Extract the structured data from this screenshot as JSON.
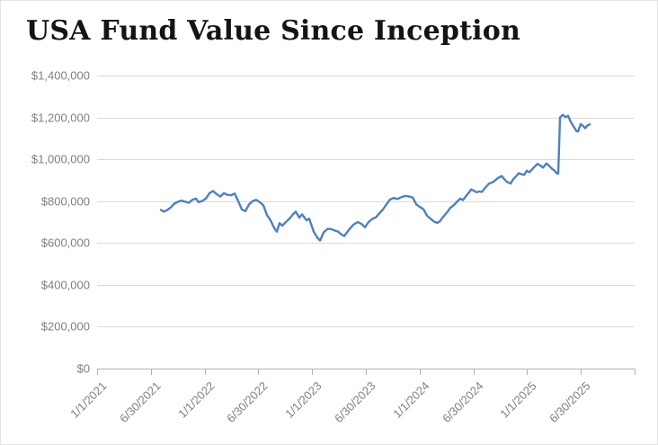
{
  "page": {
    "title": "USA Fund Value Since Inception"
  },
  "colors": {
    "background": "#ffffff",
    "title": "#141414",
    "line": "#4f81bd",
    "gridline": "#d9d9d9",
    "axis": "#b3b3b3",
    "tick_label": "#7f7f7f"
  },
  "chart_data": {
    "type": "line",
    "title": "USA Fund Value Since Inception",
    "xlabel": "",
    "ylabel": "",
    "legend": "none",
    "grid": "horizontal",
    "x_axis": {
      "range": [
        2021.0,
        2026.0
      ],
      "tick_positions": [
        2021.0,
        2021.5,
        2022.0,
        2022.5,
        2023.0,
        2023.5,
        2024.0,
        2024.5,
        2025.0,
        2025.5,
        2026.0
      ],
      "tick_labels": [
        "1/1/2021",
        "6/30/2021",
        "1/1/2022",
        "6/30/2022",
        "1/1/2023",
        "6/30/2023",
        "1/1/2024",
        "6/30/2024",
        "1/1/2025",
        "6/30/2025",
        ""
      ],
      "label_rotation_deg": -45
    },
    "y_axis": {
      "range": [
        0,
        1400000
      ],
      "tick_interval": 200000,
      "tick_labels": [
        "$0",
        "$200,000",
        "$400,000",
        "$600,000",
        "$800,000",
        "$1,000,000",
        "$1,200,000",
        "$1,400,000"
      ]
    },
    "series": [
      {
        "name": "USA Fund Value",
        "points": [
          [
            2021.594,
            758000
          ],
          [
            2021.619,
            750000
          ],
          [
            2021.652,
            757000
          ],
          [
            2021.686,
            770000
          ],
          [
            2021.719,
            788000
          ],
          [
            2021.753,
            797000
          ],
          [
            2021.786,
            802000
          ],
          [
            2021.819,
            797000
          ],
          [
            2021.853,
            792000
          ],
          [
            2021.886,
            806000
          ],
          [
            2021.92,
            812000
          ],
          [
            2021.945,
            795000
          ],
          [
            2021.978,
            800000
          ],
          [
            2022.012,
            812000
          ],
          [
            2022.045,
            838000
          ],
          [
            2022.079,
            848000
          ],
          [
            2022.112,
            833000
          ],
          [
            2022.146,
            822000
          ],
          [
            2022.179,
            838000
          ],
          [
            2022.212,
            830000
          ],
          [
            2022.246,
            828000
          ],
          [
            2022.279,
            836000
          ],
          [
            2022.313,
            800000
          ],
          [
            2022.346,
            760000
          ],
          [
            2022.38,
            752000
          ],
          [
            2022.413,
            784000
          ],
          [
            2022.446,
            800000
          ],
          [
            2022.48,
            806000
          ],
          [
            2022.513,
            795000
          ],
          [
            2022.547,
            780000
          ],
          [
            2022.58,
            733000
          ],
          [
            2022.614,
            708000
          ],
          [
            2022.647,
            672000
          ],
          [
            2022.672,
            654000
          ],
          [
            2022.697,
            695000
          ],
          [
            2022.722,
            683000
          ],
          [
            2022.756,
            700000
          ],
          [
            2022.789,
            716000
          ],
          [
            2022.823,
            737000
          ],
          [
            2022.848,
            750000
          ],
          [
            2022.881,
            721000
          ],
          [
            2022.906,
            737000
          ],
          [
            2022.948,
            708000
          ],
          [
            2022.973,
            716000
          ],
          [
            2023.015,
            654000
          ],
          [
            2023.049,
            625000
          ],
          [
            2023.074,
            612000
          ],
          [
            2023.107,
            650000
          ],
          [
            2023.141,
            667000
          ],
          [
            2023.174,
            667000
          ],
          [
            2023.207,
            660000
          ],
          [
            2023.241,
            655000
          ],
          [
            2023.274,
            640000
          ],
          [
            2023.299,
            633000
          ],
          [
            2023.341,
            662000
          ],
          [
            2023.383,
            687000
          ],
          [
            2023.425,
            700000
          ],
          [
            2023.458,
            692000
          ],
          [
            2023.492,
            675000
          ],
          [
            2023.525,
            700000
          ],
          [
            2023.559,
            715000
          ],
          [
            2023.592,
            722000
          ],
          [
            2023.626,
            742000
          ],
          [
            2023.659,
            760000
          ],
          [
            2023.692,
            785000
          ],
          [
            2023.726,
            808000
          ],
          [
            2023.759,
            815000
          ],
          [
            2023.793,
            810000
          ],
          [
            2023.826,
            818000
          ],
          [
            2023.868,
            825000
          ],
          [
            2023.901,
            822000
          ],
          [
            2023.935,
            818000
          ],
          [
            2023.968,
            785000
          ],
          [
            2024.002,
            772000
          ],
          [
            2024.035,
            762000
          ],
          [
            2024.069,
            730000
          ],
          [
            2024.102,
            716000
          ],
          [
            2024.135,
            702000
          ],
          [
            2024.161,
            696000
          ],
          [
            2024.186,
            702000
          ],
          [
            2024.219,
            725000
          ],
          [
            2024.253,
            745000
          ],
          [
            2024.286,
            768000
          ],
          [
            2024.32,
            782000
          ],
          [
            2024.353,
            800000
          ],
          [
            2024.378,
            812000
          ],
          [
            2024.403,
            805000
          ],
          [
            2024.428,
            822000
          ],
          [
            2024.454,
            838000
          ],
          [
            2024.479,
            856000
          ],
          [
            2024.504,
            850000
          ],
          [
            2024.529,
            842000
          ],
          [
            2024.554,
            846000
          ],
          [
            2024.579,
            844000
          ],
          [
            2024.612,
            865000
          ],
          [
            2024.646,
            884000
          ],
          [
            2024.679,
            890000
          ],
          [
            2024.704,
            900000
          ],
          [
            2024.729,
            910000
          ],
          [
            2024.763,
            920000
          ],
          [
            2024.788,
            905000
          ],
          [
            2024.813,
            892000
          ],
          [
            2024.846,
            884000
          ],
          [
            2024.871,
            905000
          ],
          [
            2024.897,
            918000
          ],
          [
            2024.922,
            933000
          ],
          [
            2024.947,
            928000
          ],
          [
            2024.972,
            925000
          ],
          [
            2024.997,
            945000
          ],
          [
            2025.022,
            938000
          ],
          [
            2025.064,
            962000
          ],
          [
            2025.097,
            978000
          ],
          [
            2025.122,
            970000
          ],
          [
            2025.147,
            960000
          ],
          [
            2025.181,
            980000
          ],
          [
            2025.206,
            968000
          ],
          [
            2025.231,
            955000
          ],
          [
            2025.256,
            945000
          ],
          [
            2025.273,
            934000
          ],
          [
            2025.289,
            930000
          ],
          [
            2025.306,
            1200000
          ],
          [
            2025.331,
            1212000
          ],
          [
            2025.356,
            1202000
          ],
          [
            2025.381,
            1207000
          ],
          [
            2025.406,
            1178000
          ],
          [
            2025.431,
            1158000
          ],
          [
            2025.457,
            1136000
          ],
          [
            2025.473,
            1132000
          ],
          [
            2025.498,
            1168000
          ],
          [
            2025.523,
            1158000
          ],
          [
            2025.54,
            1148000
          ],
          [
            2025.557,
            1160000
          ],
          [
            2025.582,
            1167000
          ]
        ]
      }
    ]
  }
}
